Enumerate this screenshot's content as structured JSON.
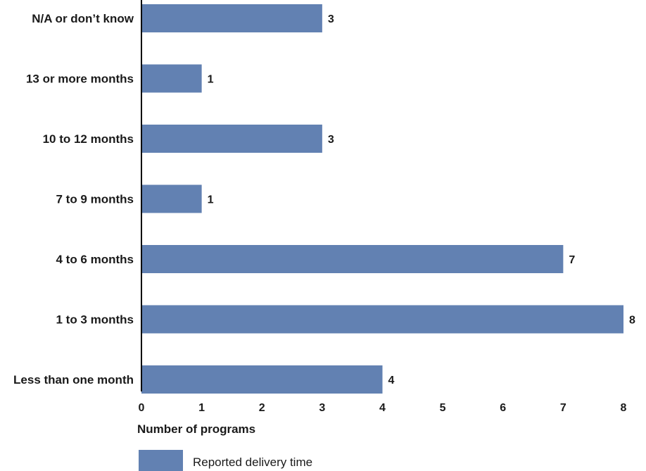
{
  "chart_data": {
    "type": "bar",
    "orientation": "horizontal",
    "categories": [
      "N/A or don’t know",
      "13 or more months",
      "10 to 12 months",
      "7 to 9 months",
      "4 to 6 months",
      "1 to 3 months",
      "Less than one month"
    ],
    "series": [
      {
        "name": "Reported delivery time",
        "values": [
          3,
          1,
          3,
          1,
          7,
          8,
          4
        ],
        "color": "#6281b2"
      }
    ],
    "xlabel": "Number of programs",
    "ylabel": "",
    "xlim": [
      0,
      8
    ],
    "ticks": [
      0,
      1,
      2,
      3,
      4,
      5,
      6,
      7,
      8
    ],
    "grid": false,
    "legend_position": "bottom-left",
    "data_labels": true
  }
}
